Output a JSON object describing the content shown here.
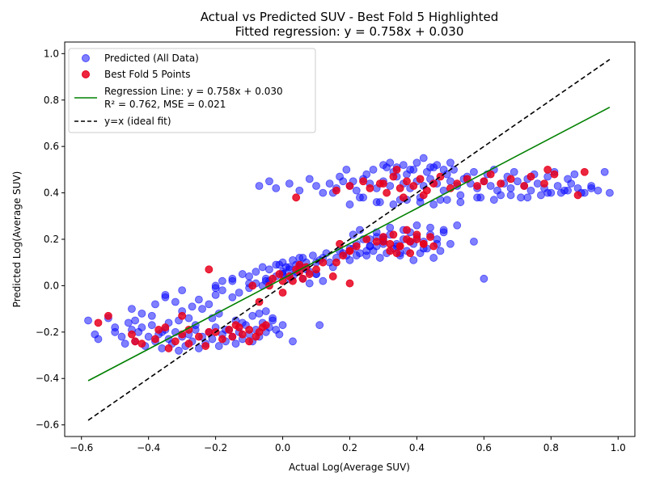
{
  "chart_data": {
    "type": "scatter",
    "title": "Actual vs Predicted SUV - Best Fold 5 Highlighted",
    "subtitle": "Fitted regression: y = 0.758x + 0.030",
    "xlabel": "Actual Log(Average SUV)",
    "ylabel": "Predicted Log(Average SUV)",
    "xlim": [
      -0.65,
      1.05
    ],
    "ylim": [
      -0.65,
      1.05
    ],
    "xticks": [
      -0.6,
      -0.4,
      -0.2,
      0.0,
      0.2,
      0.4,
      0.6,
      0.8,
      1.0
    ],
    "yticks": [
      -0.6,
      -0.4,
      -0.2,
      0.0,
      0.2,
      0.4,
      0.6,
      0.8,
      1.0
    ],
    "xtick_labels": [
      "−0.6",
      "−0.4",
      "−0.2",
      "0.0",
      "0.2",
      "0.4",
      "0.6",
      "0.8",
      "1.0"
    ],
    "ytick_labels": [
      "−0.6",
      "−0.4",
      "−0.2",
      "0.0",
      "0.2",
      "0.4",
      "0.6",
      "0.8",
      "1.0"
    ],
    "grid": false,
    "legend_position": "top-left",
    "legend": [
      {
        "label": "Predicted (All Data)",
        "kind": "marker",
        "color": "#0000ff",
        "alpha": 0.5
      },
      {
        "label": "Best Fold 5 Points",
        "kind": "marker",
        "color": "#e8001c",
        "alpha": 0.85
      },
      {
        "label": "Regression Line: y = 0.758x + 0.030",
        "label2": "R² = 0.762, MSE = 0.021",
        "kind": "line",
        "color": "#008000",
        "dash": "solid"
      },
      {
        "label": "y=x (ideal fit)",
        "kind": "line",
        "color": "#000000",
        "dash": "dashed"
      }
    ],
    "lines": [
      {
        "name": "Regression Line",
        "slope": 0.758,
        "intercept": 0.03,
        "x": [
          -0.58,
          0.975
        ],
        "color": "#008000",
        "dash": "solid"
      },
      {
        "name": "y=x (ideal fit)",
        "slope": 1.0,
        "intercept": 0.0,
        "x": [
          -0.58,
          0.975
        ],
        "color": "#000000",
        "dash": "dashed"
      }
    ],
    "series": [
      {
        "name": "Predicted (All Data)",
        "color": "#0000ff",
        "alpha": 0.5,
        "x": [
          -0.58,
          -0.56,
          -0.55,
          -0.52,
          -0.5,
          -0.48,
          -0.47,
          -0.46,
          -0.45,
          -0.44,
          -0.43,
          -0.42,
          -0.41,
          -0.4,
          -0.39,
          -0.38,
          -0.37,
          -0.36,
          -0.35,
          -0.34,
          -0.33,
          -0.32,
          -0.31,
          -0.3,
          -0.29,
          -0.28,
          -0.27,
          -0.26,
          -0.25,
          -0.24,
          -0.23,
          -0.22,
          -0.21,
          -0.2,
          -0.19,
          -0.18,
          -0.17,
          -0.16,
          -0.15,
          -0.14,
          -0.13,
          -0.12,
          -0.11,
          -0.1,
          -0.09,
          -0.08,
          -0.07,
          -0.06,
          -0.05,
          -0.04,
          -0.03,
          -0.02,
          -0.01,
          0.0,
          -0.45,
          -0.42,
          -0.38,
          -0.35,
          -0.32,
          -0.3,
          -0.27,
          -0.25,
          -0.22,
          -0.2,
          -0.18,
          -0.15,
          -0.13,
          -0.1,
          -0.08,
          -0.06,
          -0.04,
          -0.02,
          0.0,
          0.02,
          0.04,
          0.05,
          0.07,
          0.1,
          -0.5,
          -0.44,
          -0.39,
          -0.34,
          -0.28,
          -0.24,
          -0.19,
          -0.14,
          -0.09,
          -0.05,
          0.03,
          0.11,
          -0.36,
          -0.31,
          -0.26,
          -0.21,
          -0.17,
          -0.12,
          -0.07,
          -0.03,
          -0.35,
          -0.3,
          -0.2,
          -0.15,
          -0.1,
          -0.05,
          0.0,
          0.02,
          0.05,
          0.08,
          0.1,
          0.12,
          0.15,
          0.18,
          0.2,
          0.22,
          0.25,
          0.28,
          -0.2,
          -0.18,
          -0.15,
          -0.12,
          -0.1,
          -0.08,
          -0.06,
          -0.04,
          -0.02,
          0.0,
          0.01,
          0.03,
          0.04,
          0.06,
          0.07,
          0.09,
          0.11,
          0.13,
          0.14,
          0.16,
          0.17,
          0.19,
          0.21,
          0.23,
          0.26,
          0.3,
          -0.05,
          0.0,
          0.03,
          0.06,
          0.08,
          0.1,
          0.12,
          0.02,
          0.05,
          -0.01,
          0.2,
          0.22,
          0.24,
          0.26,
          0.28,
          0.3,
          0.32,
          0.34,
          0.36,
          0.38,
          0.4,
          0.42,
          0.44,
          0.46,
          0.48,
          0.5,
          0.52,
          0.57,
          0.6,
          0.25,
          0.27,
          0.29,
          0.31,
          0.33,
          0.35,
          0.37,
          0.39,
          0.41,
          0.43,
          0.45,
          0.47,
          0.21,
          0.23,
          0.28,
          0.32,
          0.36,
          0.4,
          0.44,
          0.48,
          0.3,
          0.34,
          0.38,
          0.42,
          0.46,
          0.26,
          0.3,
          0.35,
          0.39,
          -0.07,
          -0.04,
          -0.02,
          0.02,
          0.05,
          0.08,
          0.1,
          0.12,
          0.14,
          0.16,
          0.18,
          0.2,
          0.22,
          0.24,
          0.26,
          0.28,
          0.3,
          0.32,
          0.34,
          0.36,
          0.38,
          0.4,
          0.42,
          0.44,
          0.46,
          0.48,
          0.5,
          0.52,
          0.54,
          0.56,
          0.58,
          0.6,
          0.62,
          0.64,
          0.66,
          0.68,
          0.7,
          0.72,
          0.74,
          0.76,
          0.78,
          0.8,
          0.82,
          0.84,
          0.86,
          0.88,
          0.9,
          0.92,
          0.94,
          0.96,
          0.975,
          0.15,
          0.17,
          0.19,
          0.21,
          0.23,
          0.25,
          0.27,
          0.29,
          0.31,
          0.33,
          0.35,
          0.37,
          0.39,
          0.41,
          0.43,
          0.45,
          0.47,
          0.49,
          0.51,
          0.53,
          0.55,
          0.57,
          0.59,
          0.61,
          0.63,
          0.65,
          0.67,
          0.69,
          0.71,
          0.73,
          0.75,
          0.77,
          0.79,
          0.81,
          0.83,
          0.85,
          0.87,
          0.89,
          0.3,
          0.32,
          0.34,
          0.36,
          0.38,
          0.4,
          0.42,
          0.44,
          0.46,
          0.48,
          0.5,
          0.2,
          0.24,
          0.28,
          0.33,
          0.37,
          0.41,
          0.45,
          0.49,
          0.53,
          0.58,
          0.63,
          0.68,
          0.73,
          0.79,
          0.85,
          0.92
        ],
        "y": [
          -0.15,
          -0.21,
          -0.23,
          -0.14,
          -0.2,
          -0.22,
          -0.25,
          -0.16,
          -0.19,
          -0.24,
          -0.2,
          -0.18,
          -0.26,
          -0.22,
          -0.17,
          -0.24,
          -0.21,
          -0.27,
          -0.19,
          -0.23,
          -0.25,
          -0.2,
          -0.28,
          -0.22,
          -0.26,
          -0.21,
          -0.24,
          -0.19,
          -0.27,
          -0.22,
          -0.25,
          -0.2,
          -0.23,
          -0.18,
          -0.26,
          -0.21,
          -0.24,
          -0.19,
          -0.22,
          -0.25,
          -0.2,
          -0.23,
          -0.17,
          -0.21,
          -0.24,
          -0.19,
          -0.22,
          -0.16,
          -0.2,
          -0.18,
          -0.15,
          -0.19,
          -0.21,
          -0.17,
          -0.1,
          -0.12,
          -0.08,
          -0.05,
          -0.07,
          -0.11,
          -0.09,
          -0.06,
          -0.08,
          -0.04,
          -0.02,
          -0.05,
          -0.03,
          -0.01,
          0.01,
          0.0,
          0.02,
          0.04,
          0.05,
          0.03,
          0.06,
          0.08,
          0.07,
          0.05,
          -0.18,
          -0.15,
          -0.13,
          -0.16,
          -0.14,
          -0.1,
          -0.12,
          -0.15,
          -0.13,
          -0.11,
          -0.24,
          -0.17,
          -0.2,
          -0.15,
          -0.17,
          -0.14,
          -0.19,
          -0.16,
          -0.12,
          -0.14,
          -0.04,
          -0.02,
          -0.01,
          0.02,
          0.01,
          0.03,
          0.05,
          0.07,
          0.09,
          0.06,
          0.1,
          0.12,
          0.08,
          0.14,
          0.11,
          0.13,
          0.15,
          0.17,
          0.0,
          0.02,
          0.03,
          0.05,
          0.04,
          0.06,
          0.08,
          0.07,
          0.09,
          0.1,
          0.08,
          0.11,
          0.09,
          0.12,
          0.1,
          0.13,
          0.11,
          0.14,
          0.1,
          0.12,
          0.15,
          0.13,
          0.16,
          0.14,
          0.17,
          0.2,
          0.02,
          0.06,
          0.04,
          0.03,
          0.01,
          0.05,
          0.02,
          0.08,
          0.12,
          0.09,
          0.16,
          0.18,
          0.2,
          0.17,
          0.21,
          0.19,
          0.22,
          0.18,
          0.2,
          0.23,
          0.21,
          0.19,
          0.22,
          0.2,
          0.24,
          0.18,
          0.26,
          0.19,
          0.03,
          0.13,
          0.15,
          0.12,
          0.14,
          0.16,
          0.13,
          0.15,
          0.11,
          0.14,
          0.16,
          0.12,
          0.15,
          0.22,
          0.24,
          0.23,
          0.25,
          0.24,
          0.26,
          0.25,
          0.23,
          0.18,
          0.17,
          0.19,
          0.16,
          0.18,
          0.2,
          0.21,
          0.14,
          0.18,
          0.43,
          0.45,
          0.42,
          0.44,
          0.41,
          0.46,
          0.43,
          0.4,
          0.44,
          0.42,
          0.45,
          0.43,
          0.41,
          0.46,
          0.44,
          0.42,
          0.45,
          0.43,
          0.47,
          0.44,
          0.42,
          0.45,
          0.43,
          0.46,
          0.44,
          0.41,
          0.45,
          0.43,
          0.46,
          0.44,
          0.42,
          0.45,
          0.43,
          0.41,
          0.44,
          0.42,
          0.45,
          0.43,
          0.41,
          0.44,
          0.42,
          0.4,
          0.43,
          0.41,
          0.44,
          0.42,
          0.4,
          0.43,
          0.41,
          0.49,
          0.4,
          0.4,
          0.47,
          0.5,
          0.45,
          0.38,
          0.48,
          0.5,
          0.36,
          0.51,
          0.49,
          0.37,
          0.48,
          0.5,
          0.38,
          0.49,
          0.51,
          0.37,
          0.48,
          0.5,
          0.39,
          0.47,
          0.49,
          0.38,
          0.48,
          0.5,
          0.39,
          0.47,
          0.49,
          0.38,
          0.46,
          0.48,
          0.39,
          0.47,
          0.49,
          0.4,
          0.46,
          0.48,
          0.4,
          0.52,
          0.53,
          0.51,
          0.52,
          0.5,
          0.53,
          0.55,
          0.51,
          0.52,
          0.5,
          0.53,
          0.35,
          0.38,
          0.36,
          0.35,
          0.37,
          0.36,
          0.35,
          0.37,
          0.36,
          0.38,
          0.37,
          0.39,
          0.38,
          0.4,
          0.41,
          0.42
        ]
      },
      {
        "name": "Best Fold 5 Points",
        "color": "#e8001c",
        "alpha": 0.85,
        "x": [
          -0.55,
          -0.52,
          -0.45,
          -0.42,
          -0.38,
          -0.35,
          -0.32,
          -0.3,
          -0.28,
          -0.25,
          -0.23,
          -0.2,
          -0.18,
          -0.16,
          -0.14,
          -0.12,
          -0.1,
          -0.08,
          -0.06,
          -0.3,
          -0.37,
          -0.44,
          -0.34,
          -0.28,
          -0.22,
          -0.15,
          -0.1,
          -0.05,
          -0.13,
          -0.07,
          -0.09,
          -0.03,
          -0.01,
          0.0,
          0.02,
          0.04,
          0.05,
          0.06,
          0.07,
          0.08,
          0.1,
          0.12,
          -0.04,
          0.0,
          0.03,
          0.05,
          -0.07,
          0.15,
          0.17,
          0.18,
          0.2,
          0.22,
          0.25,
          0.28,
          0.3,
          0.32,
          0.33,
          0.35,
          0.37,
          0.38,
          0.4,
          0.42,
          0.44,
          0.3,
          0.32,
          0.35,
          0.38,
          0.4,
          0.42,
          0.45,
          0.2,
          0.2,
          0.16,
          0.34,
          0.37,
          -0.22,
          0.16,
          0.2,
          0.24,
          0.26,
          0.29,
          0.31,
          0.33,
          0.35,
          0.37,
          0.39,
          0.41,
          0.43,
          0.45,
          0.47,
          0.5,
          0.52,
          0.55,
          0.58,
          0.6,
          0.62,
          0.65,
          0.68,
          0.72,
          0.74,
          0.78,
          0.79,
          0.81,
          0.88,
          0.9,
          0.04,
          0.36,
          0.42,
          0.3,
          0.34
        ],
        "y": [
          -0.16,
          -0.13,
          -0.21,
          -0.25,
          -0.23,
          -0.18,
          -0.24,
          -0.21,
          -0.19,
          -0.22,
          -0.26,
          -0.2,
          -0.23,
          -0.19,
          -0.17,
          -0.21,
          -0.19,
          -0.22,
          -0.18,
          -0.13,
          -0.19,
          -0.24,
          -0.27,
          -0.25,
          -0.2,
          -0.22,
          -0.24,
          -0.17,
          -0.18,
          -0.2,
          0.0,
          0.03,
          0.05,
          0.02,
          0.04,
          0.07,
          0.06,
          0.03,
          0.08,
          0.05,
          0.07,
          0.1,
          0.0,
          -0.03,
          0.02,
          0.09,
          -0.07,
          0.04,
          0.18,
          0.13,
          0.15,
          0.17,
          0.2,
          0.19,
          0.21,
          0.18,
          0.22,
          0.17,
          0.2,
          0.19,
          0.22,
          0.18,
          0.21,
          0.19,
          0.15,
          0.17,
          0.14,
          0.2,
          0.18,
          0.17,
          0.15,
          0.01,
          0.1,
          0.14,
          0.24,
          0.07,
          0.41,
          0.43,
          0.45,
          0.42,
          0.44,
          0.4,
          0.47,
          0.42,
          0.45,
          0.43,
          0.46,
          0.41,
          0.44,
          0.47,
          0.42,
          0.44,
          0.46,
          0.43,
          0.45,
          0.48,
          0.44,
          0.46,
          0.43,
          0.47,
          0.44,
          0.5,
          0.48,
          0.39,
          0.49,
          0.38,
          0.38,
          0.39,
          0.44,
          0.5
        ]
      }
    ]
  }
}
